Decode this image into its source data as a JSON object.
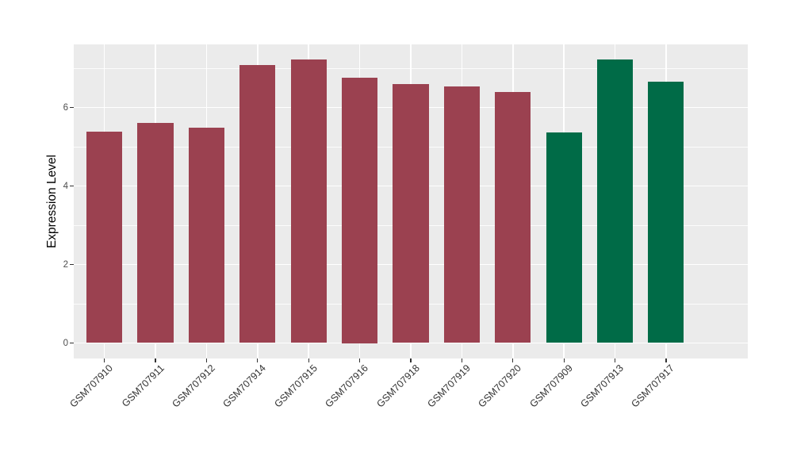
{
  "chart_data": {
    "type": "bar",
    "title": "",
    "xlabel": "",
    "ylabel": "Expression Level",
    "ylim": [
      0,
      7.6
    ],
    "y_major_ticks": [
      0,
      2,
      4,
      6
    ],
    "y_minor_gridlines": [
      1,
      3,
      5,
      7
    ],
    "legend": "none",
    "grid": "on",
    "categories": [
      "GSM707910",
      "GSM707911",
      "GSM707912",
      "GSM707914",
      "GSM707915",
      "GSM707916",
      "GSM707918",
      "GSM707919",
      "GSM707920",
      "GSM707909",
      "GSM707913",
      "GSM707917"
    ],
    "values": [
      5.38,
      5.6,
      5.48,
      7.08,
      7.23,
      6.75,
      6.6,
      6.53,
      6.39,
      5.36,
      7.22,
      6.66
    ],
    "bar_colors": [
      "#9B4150",
      "#9B4150",
      "#9B4150",
      "#9B4150",
      "#9B4150",
      "#9B4150",
      "#9B4150",
      "#9B4150",
      "#9B4150",
      "#006B47",
      "#006B47",
      "#006B47"
    ]
  },
  "style": {
    "panel_background": "#EBEBEB",
    "gridline_color": "#FFFFFF",
    "maroon_group_color": "#9B4150",
    "green_group_color": "#006B47",
    "axis_tick_text_color": "#4D4D4D",
    "x_label_text_color": "#333333",
    "axis_title_color": "#000000"
  }
}
